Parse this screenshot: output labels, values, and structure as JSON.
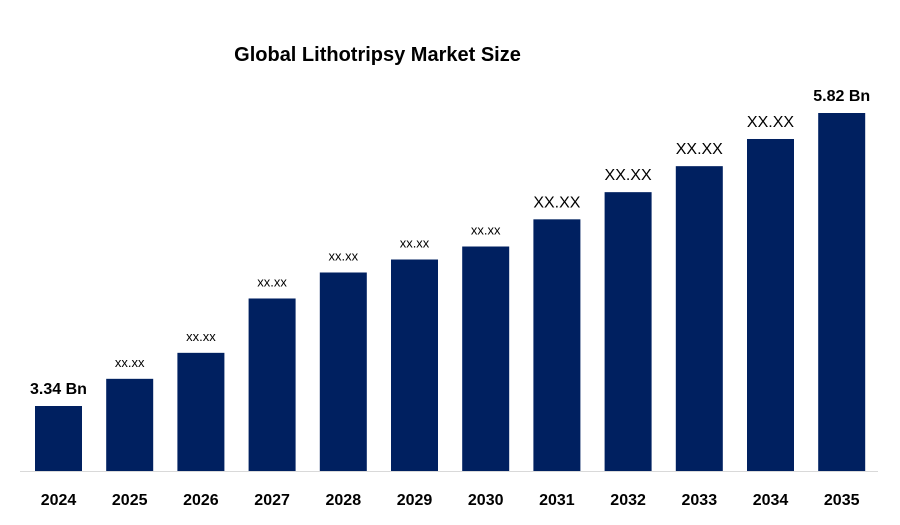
{
  "chart_data": {
    "type": "bar",
    "title": "Global Lithotripsy Market Size",
    "xlabel": "",
    "ylabel": "",
    "categories": [
      "2024",
      "2025",
      "2026",
      "2027",
      "2028",
      "2029",
      "2030",
      "2031",
      "2032",
      "2033",
      "2034",
      "2035"
    ],
    "values": [
      3.34,
      3.57,
      3.79,
      4.25,
      4.47,
      4.58,
      4.69,
      4.92,
      5.15,
      5.37,
      5.6,
      5.82
    ],
    "data_labels": [
      "3.34 Bn",
      "xx.xx",
      "xx.xx",
      "xx.xx",
      "xx.xx",
      "xx.xx",
      "xx.xx",
      "XX.XX",
      "XX.XX",
      "XX.XX",
      "XX.XX",
      "5.82 Bn"
    ],
    "ylim": [
      2.79,
      5.82
    ],
    "grid": false,
    "bar_color": "#002060",
    "axis_color": "#d9d9d9"
  }
}
